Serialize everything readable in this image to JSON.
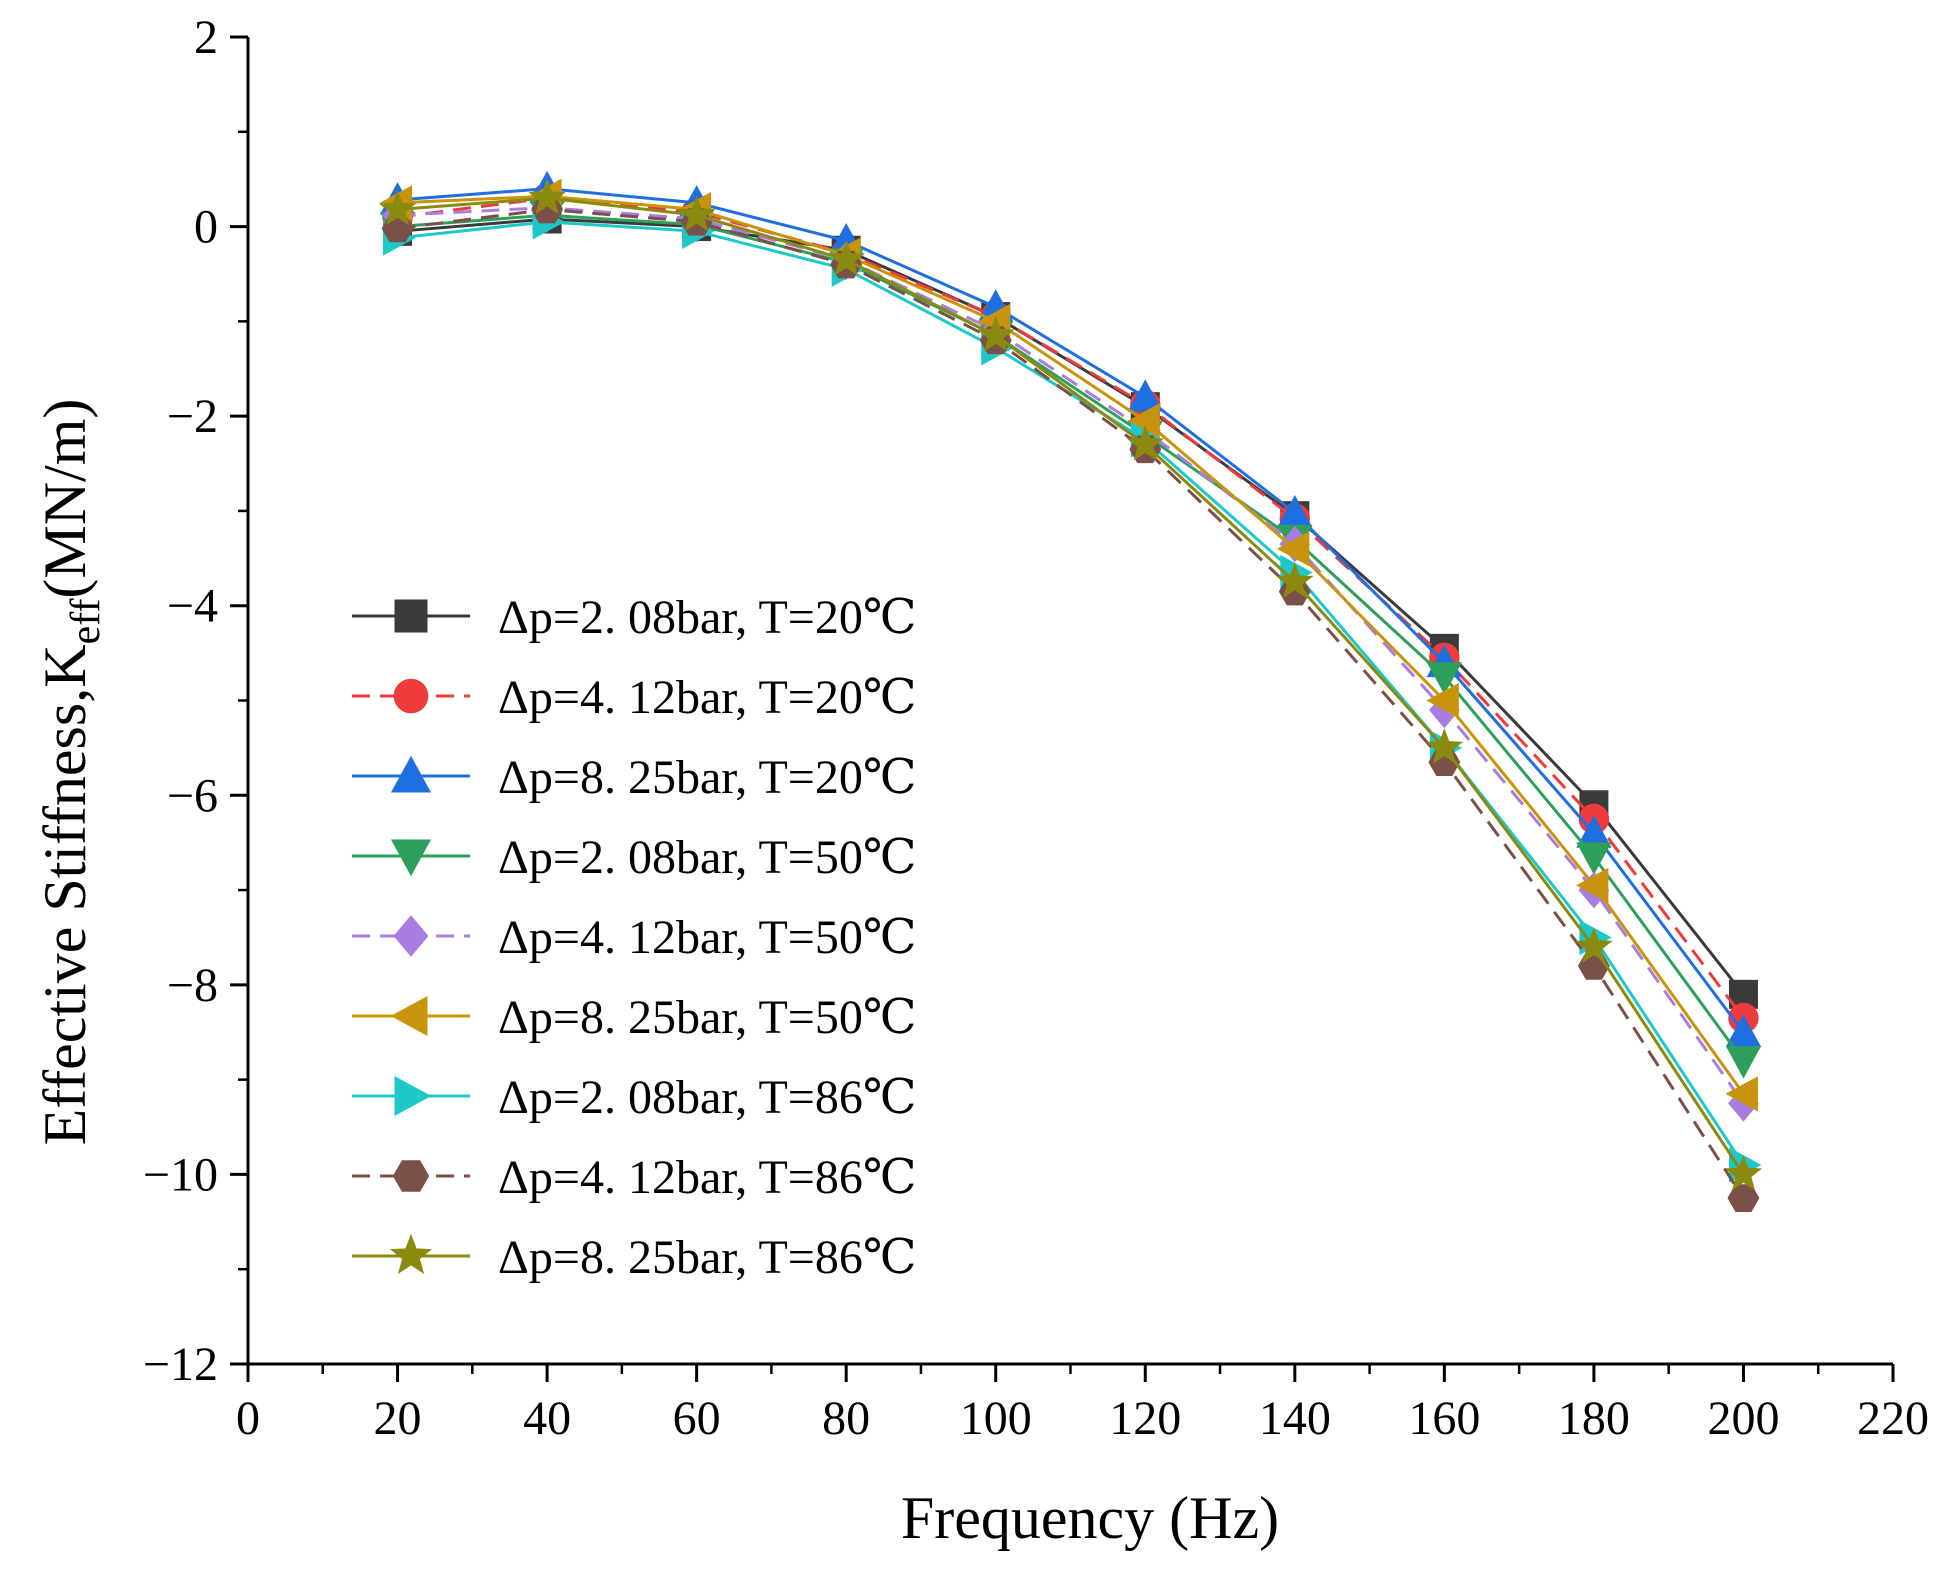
{
  "chart_data": {
    "type": "line",
    "title": "",
    "xlabel": "Frequency (Hz)",
    "ylabel_main": "Effective Stiffness,K",
    "ylabel_sub": "eff",
    "ylabel_unit": "(MN/m)",
    "xlim": [
      0,
      220
    ],
    "ylim": [
      -12,
      2
    ],
    "xticks": [
      0,
      20,
      40,
      60,
      80,
      100,
      120,
      140,
      160,
      180,
      200,
      220
    ],
    "xtick_labels": [
      "0",
      "20",
      "40",
      "60",
      "80",
      "100",
      "120",
      "140",
      "160",
      "180",
      "200",
      "220"
    ],
    "yticks": [
      2,
      0,
      -2,
      -4,
      -6,
      -8,
      -10,
      -12
    ],
    "ytick_labels": [
      "2",
      "0",
      "−2",
      "−4",
      "−6",
      "−8",
      "−10",
      "−12"
    ],
    "grid": false,
    "legend_position": "center-left",
    "x": [
      20,
      40,
      60,
      80,
      100,
      120,
      140,
      160,
      180,
      200
    ],
    "series": [
      {
        "name": "Δp=2. 08bar, T=20℃",
        "color": "#3a3a3a",
        "marker": "square",
        "dash": false,
        "values": [
          -0.05,
          0.08,
          0.0,
          -0.25,
          -0.95,
          -1.9,
          -3.05,
          -4.45,
          -6.1,
          -8.1
        ]
      },
      {
        "name": "Δp=4. 12bar, T=20℃",
        "color": "#ef3b3b",
        "marker": "circle",
        "dash": true,
        "values": [
          0.1,
          0.3,
          0.15,
          -0.28,
          -0.95,
          -1.88,
          -3.08,
          -4.55,
          -6.25,
          -8.35
        ]
      },
      {
        "name": "Δp=8. 25bar, T=20℃",
        "color": "#1f6fe0",
        "marker": "triangle-up",
        "dash": false,
        "values": [
          0.28,
          0.4,
          0.25,
          -0.15,
          -0.85,
          -1.8,
          -3.02,
          -4.6,
          -6.4,
          -8.5
        ]
      },
      {
        "name": "Δp=2. 08bar, T=50℃",
        "color": "#2e9e5b",
        "marker": "triangle-down",
        "dash": false,
        "values": [
          0.0,
          0.12,
          0.02,
          -0.38,
          -1.15,
          -2.2,
          -3.3,
          -4.75,
          -6.65,
          -8.8
        ]
      },
      {
        "name": "Δp=4. 12bar, T=50℃",
        "color": "#a97de0",
        "marker": "diamond",
        "dash": true,
        "values": [
          0.12,
          0.2,
          0.08,
          -0.35,
          -1.1,
          -2.15,
          -3.35,
          -5.1,
          -7.0,
          -9.25
        ]
      },
      {
        "name": "Δp=8. 25bar, T=50℃",
        "color": "#c8930d",
        "marker": "triangle-left",
        "dash": false,
        "values": [
          0.25,
          0.32,
          0.18,
          -0.3,
          -1.0,
          -2.05,
          -3.4,
          -5.0,
          -6.95,
          -9.15
        ]
      },
      {
        "name": "Δp=2. 08bar, T=86℃",
        "color": "#1ec8c8",
        "marker": "triangle-right",
        "dash": false,
        "values": [
          -0.12,
          0.05,
          -0.05,
          -0.45,
          -1.28,
          -2.25,
          -3.65,
          -5.5,
          -7.5,
          -9.9
        ]
      },
      {
        "name": "Δp=4. 12bar, T=86℃",
        "color": "#7a5048",
        "marker": "hexagon",
        "dash": true,
        "values": [
          -0.02,
          0.18,
          0.05,
          -0.4,
          -1.2,
          -2.35,
          -3.85,
          -5.65,
          -7.8,
          -10.25
        ]
      },
      {
        "name": "Δp=8. 25bar, T=86℃",
        "color": "#8a8a10",
        "marker": "star",
        "dash": false,
        "values": [
          0.18,
          0.3,
          0.12,
          -0.35,
          -1.15,
          -2.3,
          -3.75,
          -5.5,
          -7.6,
          -10.0
        ]
      }
    ]
  }
}
